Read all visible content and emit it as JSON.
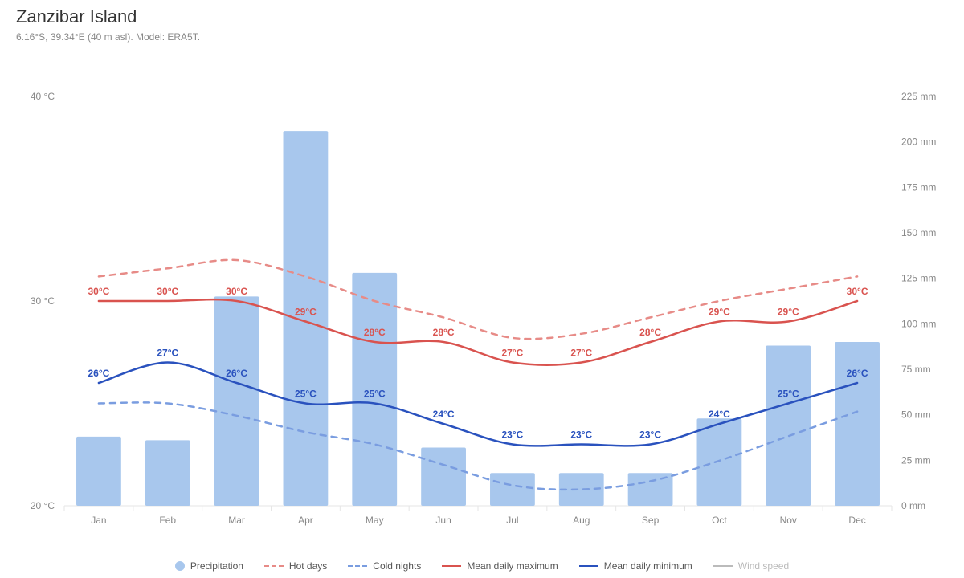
{
  "header": {
    "title": "Zanzibar Island",
    "subtitle": "6.16°S, 39.34°E (40 m asl).\nModel: ERA5T."
  },
  "chart": {
    "type": "combo-bar-line",
    "months": [
      "Jan",
      "Feb",
      "Mar",
      "Apr",
      "May",
      "Jun",
      "Jul",
      "Aug",
      "Sep",
      "Oct",
      "Nov",
      "Dec"
    ],
    "temp_axis": {
      "min": 20,
      "max": 40,
      "step": 10,
      "unit": "°C"
    },
    "precip_axis": {
      "min": 0,
      "max": 225,
      "step": 25,
      "unit": "mm"
    },
    "precipitation_mm": [
      38,
      36,
      115,
      206,
      128,
      32,
      18,
      18,
      18,
      48,
      88,
      90
    ],
    "mean_max_c": [
      30,
      30,
      30,
      29,
      28,
      28,
      27,
      27,
      28,
      29,
      29,
      30
    ],
    "mean_min_c": [
      26,
      27,
      26,
      25,
      25,
      24,
      23,
      23,
      23,
      24,
      25,
      26
    ],
    "hot_days_c": [
      31.2,
      31.6,
      32.0,
      31.2,
      30.0,
      29.2,
      28.2,
      28.4,
      29.2,
      30.0,
      30.6,
      31.2
    ],
    "cold_nights_c": [
      25.0,
      25.0,
      24.4,
      23.6,
      23.0,
      22.0,
      21.0,
      20.8,
      21.2,
      22.2,
      23.4,
      24.6
    ],
    "colors": {
      "bar": "#a8c7ed",
      "mean_max": "#d9534f",
      "mean_min": "#2a52be",
      "hot_days": "#e78b87",
      "cold_nights": "#7a9de0",
      "grid": "#e6e6e6",
      "axis_text": "#888888",
      "background": "#ffffff",
      "wind": "#bbbbbb"
    },
    "line_width": 2.5,
    "dash_pattern": "7 7",
    "bar_width_ratio": 0.65,
    "label_fontsize": 12
  },
  "legend": {
    "items": [
      {
        "key": "precipitation",
        "label": "Precipitation",
        "kind": "dot"
      },
      {
        "key": "hot_days",
        "label": "Hot days",
        "kind": "dashed"
      },
      {
        "key": "cold_nights",
        "label": "Cold nights",
        "kind": "dashed"
      },
      {
        "key": "mean_max",
        "label": "Mean daily maximum",
        "kind": "solid"
      },
      {
        "key": "mean_min",
        "label": "Mean daily minimum",
        "kind": "solid"
      },
      {
        "key": "wind",
        "label": "Wind speed",
        "kind": "solid",
        "muted": true
      }
    ]
  }
}
